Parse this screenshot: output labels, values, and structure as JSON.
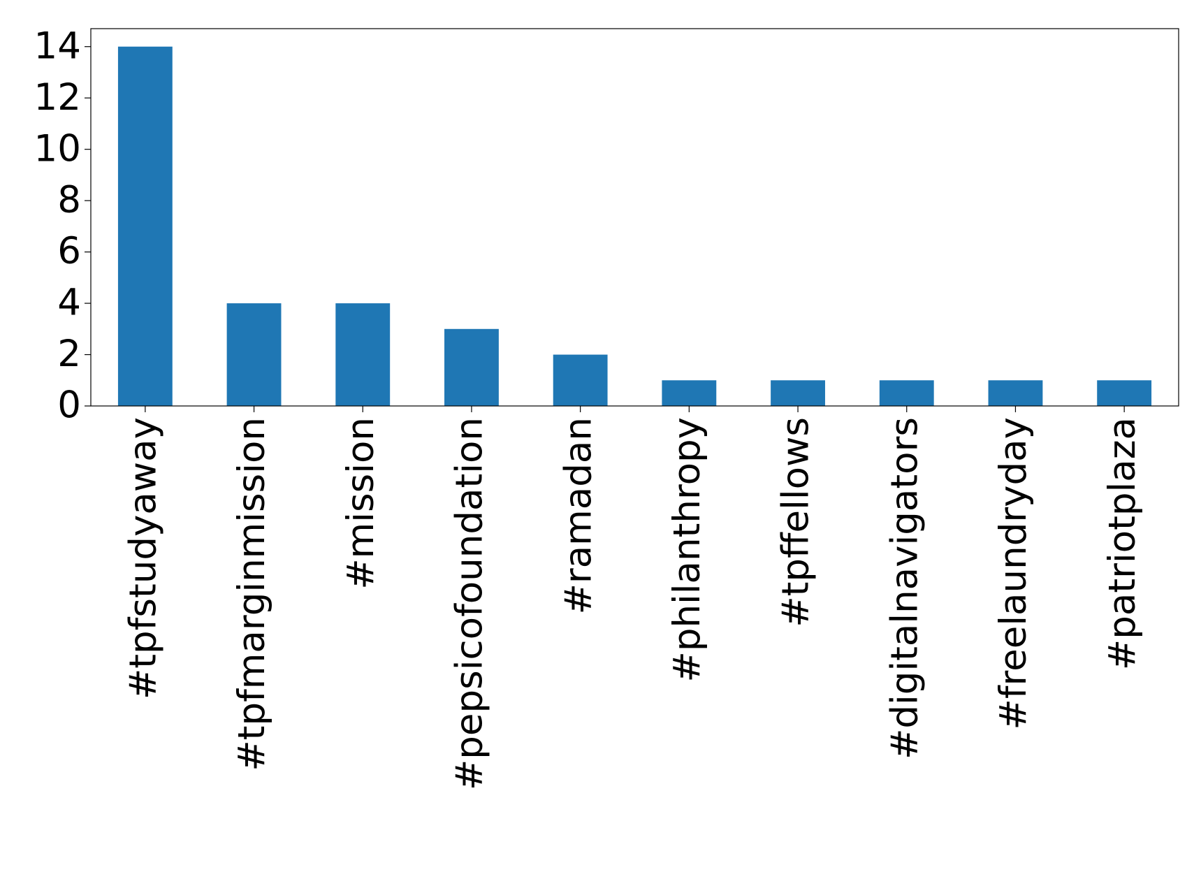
{
  "chart_data": {
    "type": "bar",
    "categories": [
      "#tpfstudyaway",
      "#tpfmarginmission",
      "#mission",
      "#pepsicofoundation",
      "#ramadan",
      "#philanthropy",
      "#tpffellows",
      "#digitalnavigators",
      "#freelaundryday",
      "#patriotplaza"
    ],
    "values": [
      14,
      4,
      4,
      3,
      2,
      1,
      1,
      1,
      1,
      1
    ],
    "color": "#1f77b4",
    "ylim": [
      0,
      14.7
    ],
    "yticks": [
      0,
      2,
      4,
      6,
      8,
      10,
      12,
      14
    ],
    "grid": false
  }
}
